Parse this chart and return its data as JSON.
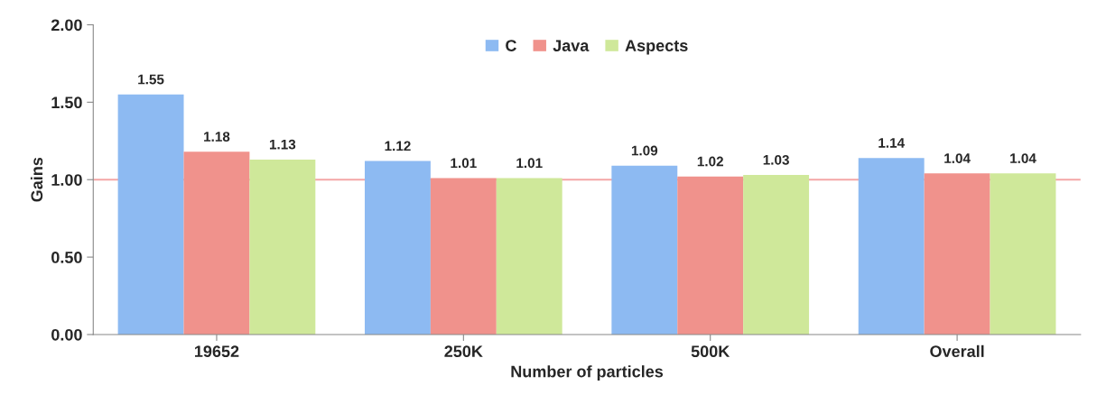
{
  "chart_data": {
    "type": "bar",
    "xlabel": "Number of particles",
    "ylabel": "Gains",
    "categories": [
      "19652",
      "250K",
      "500K",
      "Overall"
    ],
    "series": [
      {
        "name": "C",
        "color": "#8dbaf2",
        "values": [
          1.55,
          1.12,
          1.09,
          1.14
        ]
      },
      {
        "name": "Java",
        "color": "#f0928c",
        "values": [
          1.18,
          1.01,
          1.02,
          1.04
        ]
      },
      {
        "name": "Aspects",
        "color": "#cfe89a",
        "values": [
          1.13,
          1.01,
          1.03,
          1.04
        ]
      }
    ],
    "ylim": [
      0,
      2
    ],
    "yticks": [
      {
        "value": 0,
        "label": "0.00"
      },
      {
        "value": 0.5,
        "label": "0.50"
      },
      {
        "value": 1,
        "label": "1.00"
      },
      {
        "value": 1.5,
        "label": "1.50"
      },
      {
        "value": 2,
        "label": "2.00"
      }
    ],
    "ref_lines": [
      {
        "axis": "y",
        "value": 1,
        "color": "#f4a6a6"
      }
    ],
    "data_labels": true,
    "legend": "top",
    "grid": false
  }
}
